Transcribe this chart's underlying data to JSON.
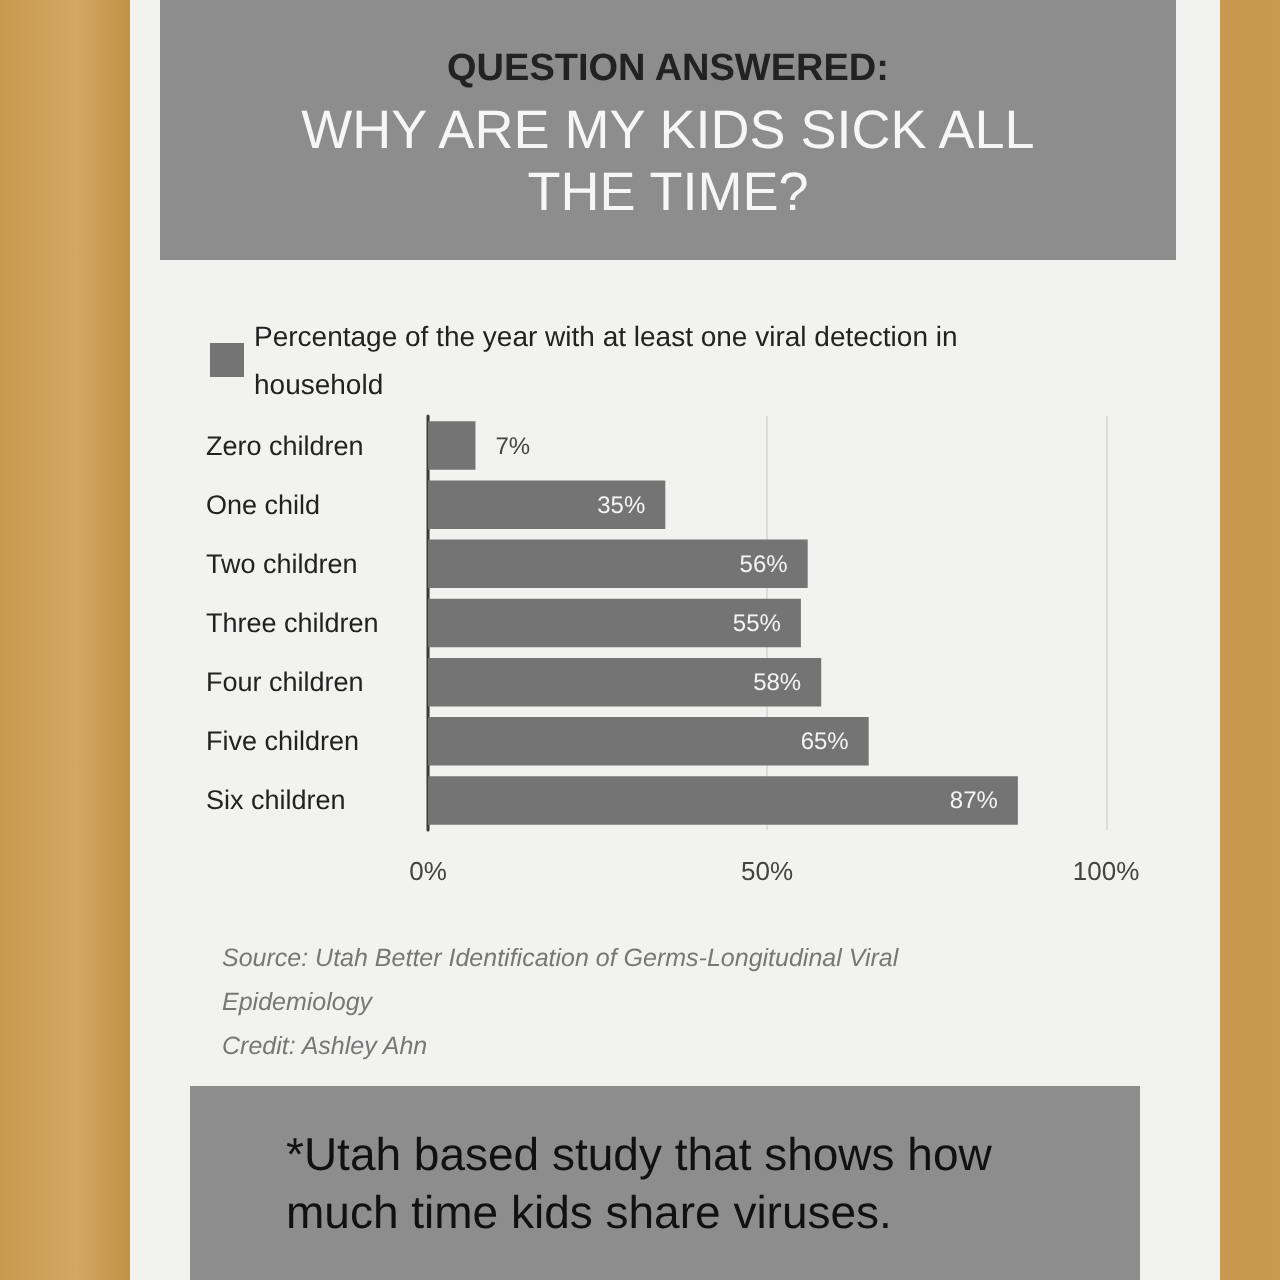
{
  "chart_data": {
    "type": "bar",
    "orientation": "horizontal",
    "title": "QUESTION ANSWERED:",
    "subtitle": "WHY ARE MY KIDS SICK ALL THE TIME?",
    "categories": [
      "Zero children",
      "One child",
      "Two children",
      "Three children",
      "Four children",
      "Five children",
      "Six children"
    ],
    "series": [
      {
        "name": "Percentage of the year with at least one viral detection in household",
        "color": "#747474",
        "values": [
          7,
          35,
          56,
          55,
          58,
          65,
          87
        ],
        "value_labels": [
          "7%",
          "35%",
          "56%",
          "55%",
          "58%",
          "65%",
          "87%"
        ]
      }
    ],
    "xlim": [
      0,
      100
    ],
    "xticks": [
      {
        "value": 0,
        "label": "0%"
      },
      {
        "value": 50,
        "label": "50%"
      },
      {
        "value": 100,
        "label": "100%"
      }
    ],
    "grid": "x",
    "legend": "top left",
    "annotations": [
      "Source: Utah Better Identification of Germs-Longitudinal Viral Epidemiology",
      "Credit: Ashley Ahn",
      "*Utah based study that shows how much time kids share viruses."
    ]
  }
}
